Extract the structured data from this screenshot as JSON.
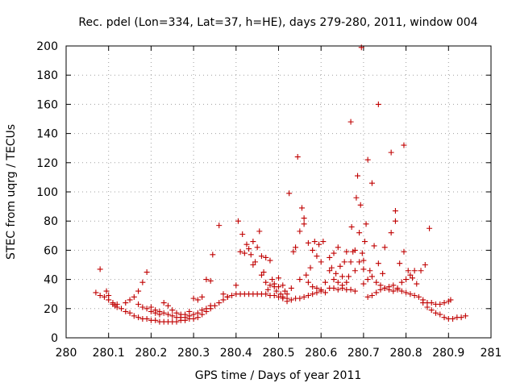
{
  "chart_data": {
    "type": "scatter",
    "title": "Rec. pdel (Lon=334, Lat=37, h=HE), days 279-280, 2011, window 004",
    "xlabel": "GPS time / Days of year 2011",
    "ylabel": "STEC from uqrg / TECUs",
    "xlim": [
      280,
      281
    ],
    "ylim": [
      0,
      200
    ],
    "x_ticks": [
      280,
      280.1,
      280.2,
      280.3,
      280.4,
      280.5,
      280.6,
      280.7,
      280.8,
      280.9,
      281
    ],
    "x_tick_labels": [
      "280",
      "280.1",
      "280.2",
      "280.3",
      "280.4",
      "280.5",
      "280.6",
      "280.7",
      "280.8",
      "280.9",
      "281"
    ],
    "y_ticks": [
      0,
      20,
      40,
      60,
      80,
      100,
      120,
      140,
      160,
      180,
      200
    ],
    "y_tick_labels": [
      "0",
      "20",
      "40",
      "60",
      "80",
      "100",
      "120",
      "140",
      "160",
      "180",
      "200"
    ],
    "grid": true,
    "marker": "+",
    "color": "#c00000",
    "points": [
      [
        280.07,
        31
      ],
      [
        280.08,
        29
      ],
      [
        280.09,
        28
      ],
      [
        280.095,
        32
      ],
      [
        280.1,
        26
      ],
      [
        280.11,
        23
      ],
      [
        280.115,
        22
      ],
      [
        280.12,
        21
      ],
      [
        280.13,
        20
      ],
      [
        280.14,
        18
      ],
      [
        280.15,
        17
      ],
      [
        280.16,
        15
      ],
      [
        280.17,
        14
      ],
      [
        280.18,
        13
      ],
      [
        280.19,
        13
      ],
      [
        280.2,
        12
      ],
      [
        280.21,
        12
      ],
      [
        280.22,
        11
      ],
      [
        280.23,
        11
      ],
      [
        280.24,
        11
      ],
      [
        280.25,
        11
      ],
      [
        280.26,
        11
      ],
      [
        280.27,
        12
      ],
      [
        280.28,
        12
      ],
      [
        280.29,
        13
      ],
      [
        280.3,
        13
      ],
      [
        280.31,
        14
      ],
      [
        280.32,
        16
      ],
      [
        280.33,
        18
      ],
      [
        280.34,
        20
      ],
      [
        280.35,
        22
      ],
      [
        280.36,
        24
      ],
      [
        280.37,
        26
      ],
      [
        280.38,
        28
      ],
      [
        280.39,
        29
      ],
      [
        280.08,
        47
      ],
      [
        280.1,
        29
      ],
      [
        280.11,
        24
      ],
      [
        280.12,
        23
      ],
      [
        280.14,
        24
      ],
      [
        280.15,
        26
      ],
      [
        280.16,
        28
      ],
      [
        280.17,
        32
      ],
      [
        280.18,
        38
      ],
      [
        280.19,
        45
      ],
      [
        280.2,
        21
      ],
      [
        280.21,
        19
      ],
      [
        280.22,
        18
      ],
      [
        280.23,
        17
      ],
      [
        280.24,
        16
      ],
      [
        280.25,
        15
      ],
      [
        280.26,
        14
      ],
      [
        280.27,
        14
      ],
      [
        280.28,
        14
      ],
      [
        280.29,
        15
      ],
      [
        280.3,
        16
      ],
      [
        280.31,
        17
      ],
      [
        280.32,
        19
      ],
      [
        280.33,
        20
      ],
      [
        280.34,
        22
      ],
      [
        280.17,
        23
      ],
      [
        280.18,
        21
      ],
      [
        280.19,
        20
      ],
      [
        280.2,
        18
      ],
      [
        280.21,
        17
      ],
      [
        280.22,
        16
      ],
      [
        280.23,
        24
      ],
      [
        280.24,
        22
      ],
      [
        280.25,
        19
      ],
      [
        280.26,
        17
      ],
      [
        280.27,
        16
      ],
      [
        280.28,
        16
      ],
      [
        280.29,
        18
      ],
      [
        280.3,
        27
      ],
      [
        280.31,
        26
      ],
      [
        280.32,
        28
      ],
      [
        280.33,
        40
      ],
      [
        280.34,
        39
      ],
      [
        280.345,
        57
      ],
      [
        280.36,
        77
      ],
      [
        280.37,
        30
      ],
      [
        280.38,
        28
      ],
      [
        280.4,
        30
      ],
      [
        280.41,
        30
      ],
      [
        280.42,
        30
      ],
      [
        280.43,
        30
      ],
      [
        280.44,
        30
      ],
      [
        280.45,
        30
      ],
      [
        280.46,
        30
      ],
      [
        280.47,
        30
      ],
      [
        280.48,
        29
      ],
      [
        280.49,
        29
      ],
      [
        280.5,
        28
      ],
      [
        280.51,
        27
      ],
      [
        280.52,
        27
      ],
      [
        280.53,
        26
      ],
      [
        280.54,
        27
      ],
      [
        280.55,
        27
      ],
      [
        280.56,
        28
      ],
      [
        280.57,
        29
      ],
      [
        280.58,
        30
      ],
      [
        280.59,
        31
      ],
      [
        280.6,
        32
      ],
      [
        280.4,
        36
      ],
      [
        280.405,
        80
      ],
      [
        280.41,
        59
      ],
      [
        280.415,
        71
      ],
      [
        280.42,
        58
      ],
      [
        280.425,
        64
      ],
      [
        280.43,
        61
      ],
      [
        280.435,
        57
      ],
      [
        280.44,
        50
      ],
      [
        280.44,
        66
      ],
      [
        280.445,
        52
      ],
      [
        280.45,
        62
      ],
      [
        280.455,
        73
      ],
      [
        280.46,
        56
      ],
      [
        280.46,
        43
      ],
      [
        280.465,
        45
      ],
      [
        280.47,
        38
      ],
      [
        280.47,
        55
      ],
      [
        280.475,
        33
      ],
      [
        280.48,
        36
      ],
      [
        280.48,
        53
      ],
      [
        280.485,
        40
      ],
      [
        280.49,
        35
      ],
      [
        280.49,
        37
      ],
      [
        280.495,
        32
      ],
      [
        280.5,
        35
      ],
      [
        280.5,
        41
      ],
      [
        280.505,
        30
      ],
      [
        280.51,
        36
      ],
      [
        280.51,
        28
      ],
      [
        280.515,
        32
      ],
      [
        280.52,
        30
      ],
      [
        280.52,
        25
      ],
      [
        280.525,
        99
      ],
      [
        280.53,
        34
      ],
      [
        280.535,
        59
      ],
      [
        280.54,
        62
      ],
      [
        280.545,
        124
      ],
      [
        280.55,
        40
      ],
      [
        280.55,
        73
      ],
      [
        280.555,
        89
      ],
      [
        280.56,
        78
      ],
      [
        280.56,
        82
      ],
      [
        280.565,
        43
      ],
      [
        280.57,
        38
      ],
      [
        280.57,
        65
      ],
      [
        280.575,
        48
      ],
      [
        280.58,
        35
      ],
      [
        280.58,
        60
      ],
      [
        280.585,
        66
      ],
      [
        280.59,
        34
      ],
      [
        280.59,
        56
      ],
      [
        280.595,
        64
      ],
      [
        280.6,
        33
      ],
      [
        280.6,
        52
      ],
      [
        280.605,
        66
      ],
      [
        280.61,
        31
      ],
      [
        280.61,
        38
      ],
      [
        280.62,
        34
      ],
      [
        280.62,
        55
      ],
      [
        280.625,
        48
      ],
      [
        280.63,
        34
      ],
      [
        280.63,
        58
      ],
      [
        280.635,
        44
      ],
      [
        280.64,
        33
      ],
      [
        280.64,
        62
      ],
      [
        280.645,
        49
      ],
      [
        280.65,
        34
      ],
      [
        280.65,
        42
      ],
      [
        280.655,
        52
      ],
      [
        280.66,
        33
      ],
      [
        280.66,
        59
      ],
      [
        280.665,
        42
      ],
      [
        280.67,
        33
      ],
      [
        280.67,
        148
      ],
      [
        280.672,
        76
      ],
      [
        280.675,
        59
      ],
      [
        280.68,
        32
      ],
      [
        280.68,
        46
      ],
      [
        280.683,
        96
      ],
      [
        280.686,
        111
      ],
      [
        280.69,
        72
      ],
      [
        280.693,
        91
      ],
      [
        280.695,
        199
      ],
      [
        280.697,
        58
      ],
      [
        280.7,
        53
      ],
      [
        280.7,
        37
      ],
      [
        280.703,
        66
      ],
      [
        280.706,
        78
      ],
      [
        280.71,
        122
      ],
      [
        280.71,
        28
      ],
      [
        280.715,
        46
      ],
      [
        280.72,
        106
      ],
      [
        280.72,
        29
      ],
      [
        280.725,
        63
      ],
      [
        280.73,
        31
      ],
      [
        280.735,
        160
      ],
      [
        280.735,
        51
      ],
      [
        280.74,
        33
      ],
      [
        280.745,
        44
      ],
      [
        280.75,
        62
      ],
      [
        280.75,
        34
      ],
      [
        280.76,
        35
      ],
      [
        280.765,
        127
      ],
      [
        280.765,
        72
      ],
      [
        280.77,
        36
      ],
      [
        280.775,
        80
      ],
      [
        280.775,
        87
      ],
      [
        280.78,
        33
      ],
      [
        280.785,
        51
      ],
      [
        280.79,
        32
      ],
      [
        280.795,
        132
      ],
      [
        280.795,
        59
      ],
      [
        280.8,
        31
      ],
      [
        280.805,
        46
      ],
      [
        280.81,
        30
      ],
      [
        280.815,
        41
      ],
      [
        280.82,
        29
      ],
      [
        280.825,
        37
      ],
      [
        280.83,
        28
      ],
      [
        280.835,
        46
      ],
      [
        280.84,
        26
      ],
      [
        280.845,
        50
      ],
      [
        280.85,
        24
      ],
      [
        280.855,
        75
      ],
      [
        280.86,
        24
      ],
      [
        280.87,
        23
      ],
      [
        280.88,
        23
      ],
      [
        280.89,
        24
      ],
      [
        280.9,
        25
      ],
      [
        280.62,
        46
      ],
      [
        280.63,
        40
      ],
      [
        280.64,
        38
      ],
      [
        280.65,
        36
      ],
      [
        280.66,
        38
      ],
      [
        280.67,
        52
      ],
      [
        280.68,
        60
      ],
      [
        280.69,
        52
      ],
      [
        280.7,
        47
      ],
      [
        280.71,
        40
      ],
      [
        280.72,
        42
      ],
      [
        280.73,
        38
      ],
      [
        280.74,
        36
      ],
      [
        280.75,
        34
      ],
      [
        280.76,
        33
      ],
      [
        280.77,
        32
      ],
      [
        280.78,
        34
      ],
      [
        280.79,
        38
      ],
      [
        280.8,
        40
      ],
      [
        280.81,
        43
      ],
      [
        280.82,
        46
      ],
      [
        280.84,
        24
      ],
      [
        280.85,
        21
      ],
      [
        280.86,
        19
      ],
      [
        280.87,
        17
      ],
      [
        280.88,
        16
      ],
      [
        280.89,
        14
      ],
      [
        280.9,
        13
      ],
      [
        280.91,
        13
      ],
      [
        280.92,
        14
      ],
      [
        280.93,
        14
      ],
      [
        280.94,
        15
      ],
      [
        280.905,
        26
      ]
    ]
  }
}
